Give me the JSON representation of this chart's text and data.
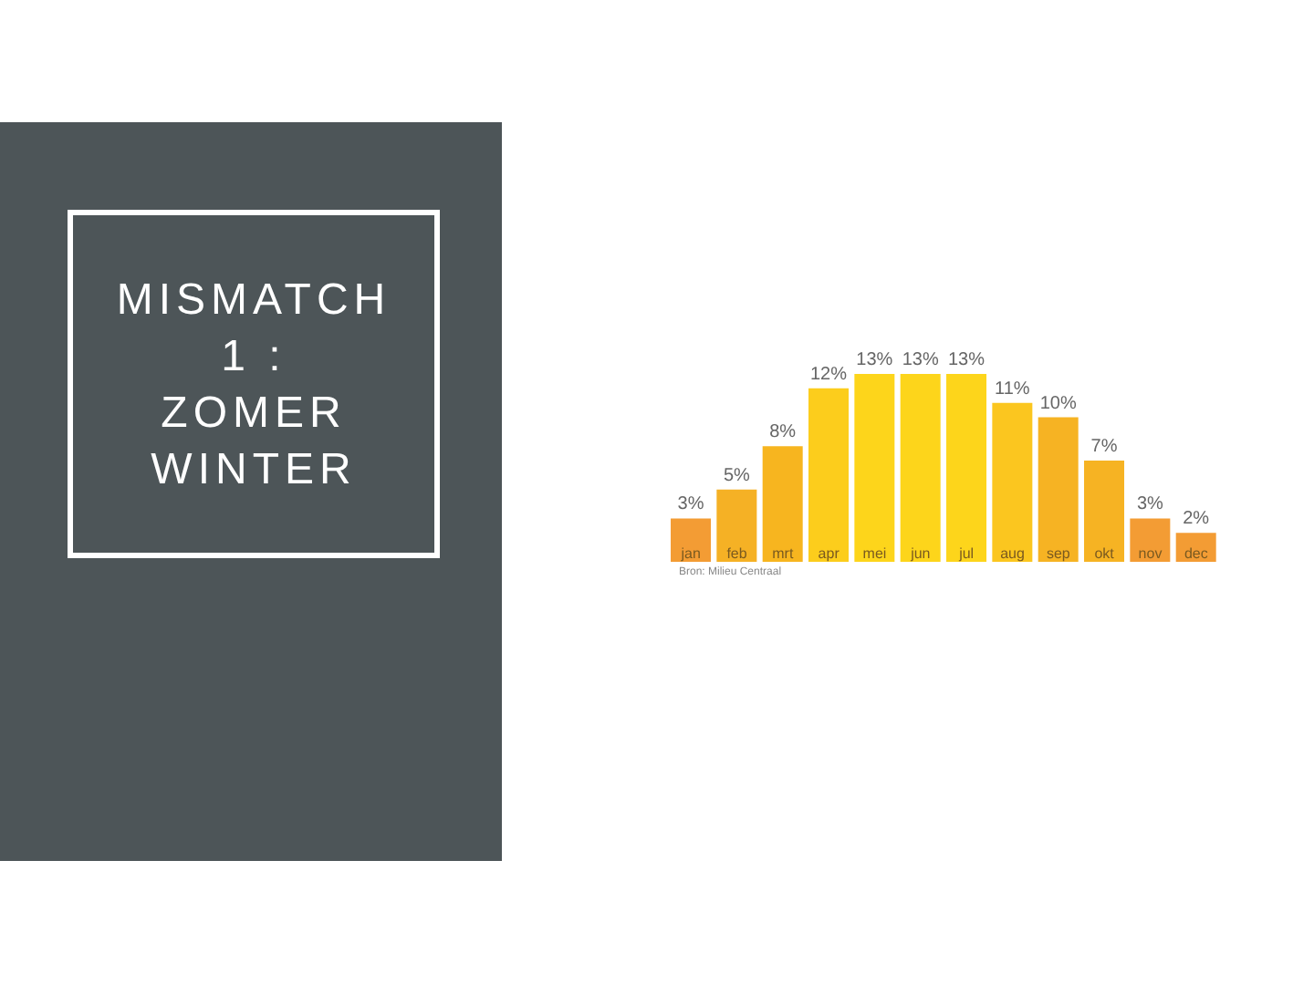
{
  "chart_data": {
    "type": "bar",
    "title": "MISMATCH\n1 :\nZOMER\nWINTER",
    "categories": [
      "jan",
      "feb",
      "mrt",
      "apr",
      "mei",
      "jun",
      "jul",
      "aug",
      "sep",
      "okt",
      "nov",
      "dec"
    ],
    "values": [
      3,
      5,
      8,
      12,
      13,
      13,
      13,
      11,
      10,
      7,
      3,
      2
    ],
    "colors": [
      "#f39c34",
      "#f5b125",
      "#f7b51f",
      "#fccd1c",
      "#fdd51b",
      "#fdd51b",
      "#fdd51b",
      "#fbc61f",
      "#f6b323",
      "#f6b323",
      "#f39c34",
      "#f39c34"
    ],
    "value_labels": [
      "3%",
      "5%",
      "8%",
      "12%",
      "13%",
      "13%",
      "13%",
      "11%",
      "10%",
      "7%",
      "3%",
      "2%"
    ],
    "annotations": [
      "Bron: Milieu Centraal"
    ]
  }
}
